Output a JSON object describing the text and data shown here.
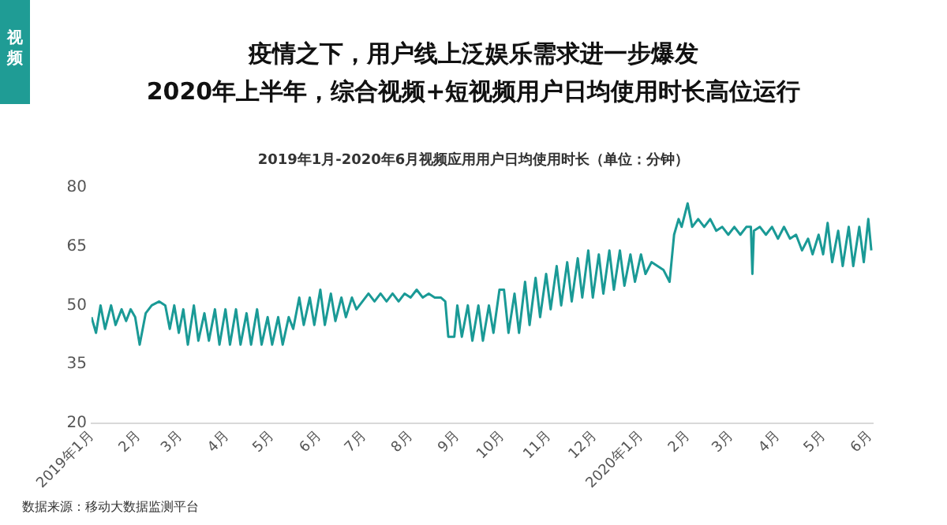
{
  "chart_data": {
    "type": "line",
    "title": "疫情之下，用户线上泛娱乐需求进一步爆发\n2020年上半年，综合视频+短视频用户日均使用时长高位运行",
    "subtitle": "2019年1月-2020年6月视频应用用户日均使用时长（单位：分钟）",
    "annotations": [
      "视频",
      "数据来源：移动大数据监测平台"
    ],
    "x": [
      "2019-01-01",
      "2019-01-04",
      "2019-01-07",
      "2019-01-10",
      "2019-01-14",
      "2019-01-17",
      "2019-01-21",
      "2019-01-24",
      "2019-01-27",
      "2019-01-30",
      "2019-02-02",
      "2019-02-06",
      "2019-02-10",
      "2019-02-15",
      "2019-02-19",
      "2019-02-22",
      "2019-02-25",
      "2019-02-28",
      "2019-03-03",
      "2019-03-06",
      "2019-03-10",
      "2019-03-13",
      "2019-03-17",
      "2019-03-20",
      "2019-03-24",
      "2019-03-27",
      "2019-03-31",
      "2019-04-03",
      "2019-04-07",
      "2019-04-10",
      "2019-04-14",
      "2019-04-17",
      "2019-04-21",
      "2019-04-24",
      "2019-04-28",
      "2019-05-01",
      "2019-05-05",
      "2019-05-08",
      "2019-05-12",
      "2019-05-15",
      "2019-05-19",
      "2019-05-22",
      "2019-05-26",
      "2019-05-29",
      "2019-06-02",
      "2019-06-05",
      "2019-06-09",
      "2019-06-12",
      "2019-06-16",
      "2019-06-19",
      "2019-06-23",
      "2019-06-26",
      "2019-06-30",
      "2019-07-04",
      "2019-07-08",
      "2019-07-12",
      "2019-07-16",
      "2019-07-20",
      "2019-07-24",
      "2019-07-28",
      "2019-08-01",
      "2019-08-05",
      "2019-08-09",
      "2019-08-13",
      "2019-08-17",
      "2019-08-21",
      "2019-08-24",
      "2019-08-26",
      "2019-08-30",
      "2019-09-01",
      "2019-09-04",
      "2019-09-08",
      "2019-09-11",
      "2019-09-15",
      "2019-09-18",
      "2019-09-22",
      "2019-09-25",
      "2019-09-29",
      "2019-10-02",
      "2019-10-05",
      "2019-10-09",
      "2019-10-12",
      "2019-10-16",
      "2019-10-19",
      "2019-10-23",
      "2019-10-26",
      "2019-10-30",
      "2019-11-02",
      "2019-11-06",
      "2019-11-09",
      "2019-11-13",
      "2019-11-16",
      "2019-11-20",
      "2019-11-23",
      "2019-11-27",
      "2019-11-30",
      "2019-12-04",
      "2019-12-07",
      "2019-12-11",
      "2019-12-14",
      "2019-12-18",
      "2019-12-21",
      "2019-12-25",
      "2019-12-28",
      "2020-01-01",
      "2020-01-04",
      "2020-01-08",
      "2020-01-12",
      "2020-01-16",
      "2020-01-20",
      "2020-01-23",
      "2020-01-26",
      "2020-01-28",
      "2020-02-01",
      "2020-02-04",
      "2020-02-08",
      "2020-02-12",
      "2020-02-16",
      "2020-02-20",
      "2020-02-24",
      "2020-02-28",
      "2020-03-03",
      "2020-03-07",
      "2020-03-11",
      "2020-03-14",
      "2020-03-15",
      "2020-03-16",
      "2020-03-20",
      "2020-03-24",
      "2020-03-28",
      "2020-04-01",
      "2020-04-05",
      "2020-04-09",
      "2020-04-13",
      "2020-04-17",
      "2020-04-21",
      "2020-04-24",
      "2020-04-28",
      "2020-05-01",
      "2020-05-04",
      "2020-05-07",
      "2020-05-11",
      "2020-05-14",
      "2020-05-18",
      "2020-05-21",
      "2020-05-25",
      "2020-05-28",
      "2020-05-31",
      "2020-06-02"
    ],
    "series": [
      {
        "color": "#1a9a96",
        "values": [
          47,
          43,
          50,
          44,
          50,
          45,
          49,
          46,
          49,
          47,
          40,
          48,
          50,
          51,
          50,
          44,
          50,
          43,
          49,
          40,
          50,
          41,
          48,
          41,
          49,
          40,
          49,
          40,
          49,
          40,
          48,
          40,
          49,
          40,
          47,
          40,
          47,
          40,
          47,
          44,
          52,
          45,
          52,
          45,
          54,
          45,
          53,
          46,
          52,
          47,
          52,
          49,
          51,
          53,
          51,
          53,
          51,
          53,
          51,
          53,
          52,
          54,
          52,
          53,
          52,
          52,
          51,
          42,
          42,
          50,
          42,
          50,
          41,
          50,
          41,
          50,
          43,
          54,
          54,
          43,
          53,
          43,
          56,
          45,
          57,
          47,
          58,
          49,
          60,
          50,
          61,
          51,
          62,
          52,
          64,
          52,
          63,
          53,
          64,
          54,
          64,
          55,
          63,
          56,
          63,
          58,
          61,
          60,
          59,
          56,
          68,
          72,
          70,
          76,
          70,
          72,
          70,
          72,
          69,
          70,
          68,
          70,
          68,
          70,
          70,
          58,
          69,
          70,
          68,
          70,
          67,
          70,
          67,
          68,
          64,
          67,
          63,
          68,
          63,
          71,
          61,
          69,
          60,
          70,
          60,
          70,
          61,
          72,
          64
        ]
      }
    ],
    "xlim": [
      "2019-01-01",
      "2020-06-03"
    ],
    "xticks": [
      {
        "value": "2019-01-01",
        "label": "2019年1月"
      },
      {
        "value": "2019-02-01",
        "label": "2月"
      },
      {
        "value": "2019-03-01",
        "label": "3月"
      },
      {
        "value": "2019-04-01",
        "label": "4月"
      },
      {
        "value": "2019-05-01",
        "label": "5月"
      },
      {
        "value": "2019-06-01",
        "label": "6月"
      },
      {
        "value": "2019-07-01",
        "label": "7月"
      },
      {
        "value": "2019-08-01",
        "label": "8月"
      },
      {
        "value": "2019-09-01",
        "label": "9月"
      },
      {
        "value": "2019-10-01",
        "label": "10月"
      },
      {
        "value": "2019-11-01",
        "label": "11月"
      },
      {
        "value": "2019-12-01",
        "label": "12月"
      },
      {
        "value": "2020-01-01",
        "label": "2020年1月"
      },
      {
        "value": "2020-02-01",
        "label": "2月"
      },
      {
        "value": "2020-03-01",
        "label": "3月"
      },
      {
        "value": "2020-04-01",
        "label": "4月"
      },
      {
        "value": "2020-05-01",
        "label": "5月"
      },
      {
        "value": "2020-06-01",
        "label": "6月"
      }
    ],
    "ylim": [
      20,
      80
    ],
    "yticks": [
      20,
      35,
      50,
      65,
      80
    ],
    "grid": false,
    "legend": false,
    "marker": "none",
    "line_style": "solid"
  }
}
